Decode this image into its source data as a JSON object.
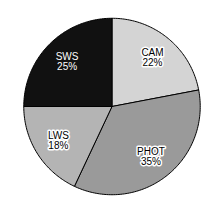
{
  "chart_data": {
    "type": "pie",
    "categories": [
      "CAM",
      "PHOT",
      "LWS",
      "SWS"
    ],
    "values": [
      22,
      35,
      18,
      25
    ],
    "value_labels": [
      "22%",
      "35%",
      "18%",
      "25%"
    ],
    "data_labels": true,
    "colors": [
      "#d4d4d4",
      "#9a9a9a",
      "#b4b4b4",
      "#111111"
    ]
  }
}
